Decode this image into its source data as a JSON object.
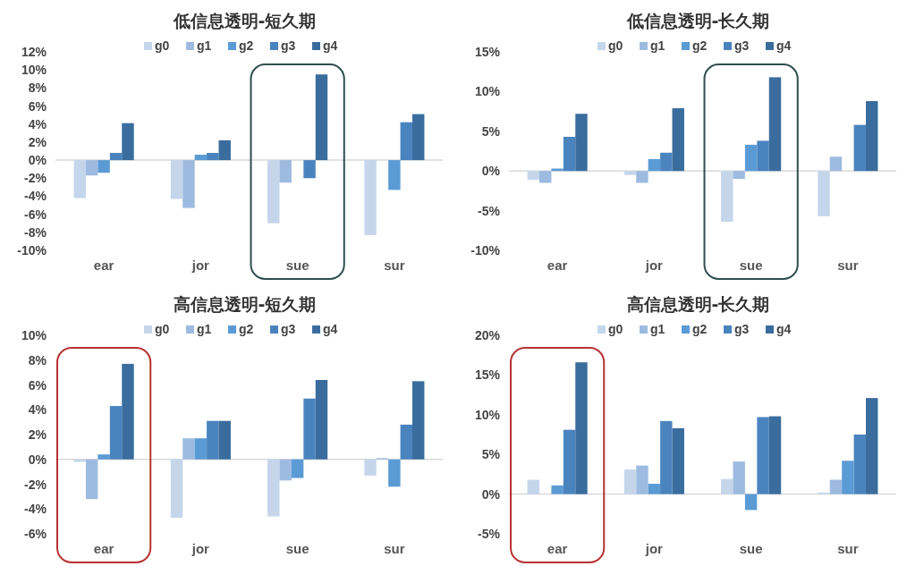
{
  "chart_data": [
    {
      "type": "bar",
      "title": "低信息透明-短久期",
      "categories": [
        "ear",
        "jor",
        "sue",
        "sur"
      ],
      "legend": "top",
      "series": [
        {
          "name": "g0",
          "color": "#c5d6eb",
          "values": [
            -4.2,
            -4.3,
            -7.0,
            -8.3
          ]
        },
        {
          "name": "g1",
          "color": "#9dbbe0",
          "values": [
            -1.7,
            -5.3,
            -2.5,
            0
          ]
        },
        {
          "name": "g2",
          "color": "#5b9bd5",
          "values": [
            -1.4,
            0.6,
            0,
            -3.3
          ]
        },
        {
          "name": "g3",
          "color": "#4a84bf",
          "values": [
            0.8,
            0.8,
            -2.0,
            4.2
          ]
        },
        {
          "name": "g4",
          "color": "#3a6d9e",
          "values": [
            4.1,
            2.2,
            9.5,
            5.1
          ]
        }
      ],
      "ylim": [
        -10,
        12
      ],
      "yticks": [
        {
          "value": -10,
          "label": "-10%"
        },
        {
          "value": -8,
          "label": "-8%"
        },
        {
          "value": -6,
          "label": "-6%"
        },
        {
          "value": -4,
          "label": "-4%"
        },
        {
          "value": -2,
          "label": "-2%"
        },
        {
          "value": 0,
          "label": "0%"
        },
        {
          "value": 2,
          "label": "2%"
        },
        {
          "value": 4,
          "label": "4%"
        },
        {
          "value": 6,
          "label": "6%"
        },
        {
          "value": 8,
          "label": "8%"
        },
        {
          "value": 10,
          "label": "10%"
        },
        {
          "value": 12,
          "label": "12%"
        }
      ]
    },
    {
      "type": "bar",
      "title": "低信息透明-长久期",
      "categories": [
        "ear",
        "jor",
        "sue",
        "sur"
      ],
      "legend": "top",
      "series": [
        {
          "name": "g0",
          "color": "#c5d6eb",
          "values": [
            -1.1,
            -0.5,
            -6.4,
            -5.7
          ]
        },
        {
          "name": "g1",
          "color": "#9dbbe0",
          "values": [
            -1.5,
            -1.5,
            -1.0,
            1.8
          ]
        },
        {
          "name": "g2",
          "color": "#5b9bd5",
          "values": [
            0.3,
            1.5,
            3.3,
            0
          ]
        },
        {
          "name": "g3",
          "color": "#4a84bf",
          "values": [
            4.3,
            2.3,
            3.8,
            5.8
          ]
        },
        {
          "name": "g4",
          "color": "#3a6d9e",
          "values": [
            7.2,
            7.9,
            11.8,
            8.8
          ]
        }
      ],
      "ylim": [
        -10,
        15
      ],
      "yticks": [
        {
          "value": -10,
          "label": "-10%"
        },
        {
          "value": -5,
          "label": "-5%"
        },
        {
          "value": 0,
          "label": "0%"
        },
        {
          "value": 5,
          "label": "5%"
        },
        {
          "value": 10,
          "label": "10%"
        },
        {
          "value": 15,
          "label": "15%"
        }
      ]
    },
    {
      "type": "bar",
      "title": "高信息透明-短久期",
      "categories": [
        "ear",
        "jor",
        "sue",
        "sur"
      ],
      "legend": "top",
      "series": [
        {
          "name": "g0",
          "color": "#c5d6eb",
          "values": [
            -0.2,
            -4.7,
            -4.6,
            -1.3
          ]
        },
        {
          "name": "g1",
          "color": "#9dbbe0",
          "values": [
            -3.2,
            1.7,
            -1.7,
            0.1
          ]
        },
        {
          "name": "g2",
          "color": "#5b9bd5",
          "values": [
            0.4,
            1.7,
            -1.5,
            -2.2
          ]
        },
        {
          "name": "g3",
          "color": "#4a84bf",
          "values": [
            4.3,
            3.1,
            4.9,
            2.8
          ]
        },
        {
          "name": "g4",
          "color": "#3a6d9e",
          "values": [
            7.7,
            3.1,
            6.4,
            6.3
          ]
        }
      ],
      "ylim": [
        -6,
        10
      ],
      "yticks": [
        {
          "value": -6,
          "label": "-6%"
        },
        {
          "value": -4,
          "label": "-4%"
        },
        {
          "value": -2,
          "label": "-2%"
        },
        {
          "value": 0,
          "label": "0%"
        },
        {
          "value": 2,
          "label": "2%"
        },
        {
          "value": 4,
          "label": "4%"
        },
        {
          "value": 6,
          "label": "6%"
        },
        {
          "value": 8,
          "label": "8%"
        },
        {
          "value": 10,
          "label": "10%"
        }
      ]
    },
    {
      "type": "bar",
      "title": "高信息透明-长久期",
      "categories": [
        "ear",
        "jor",
        "sue",
        "sur"
      ],
      "legend": "top",
      "series": [
        {
          "name": "g0",
          "color": "#c5d6eb",
          "values": [
            1.8,
            3.1,
            1.9,
            0.2
          ]
        },
        {
          "name": "g1",
          "color": "#9dbbe0",
          "values": [
            0,
            3.6,
            4.1,
            1.8
          ]
        },
        {
          "name": "g2",
          "color": "#5b9bd5",
          "values": [
            1.1,
            1.3,
            -2.0,
            4.2
          ]
        },
        {
          "name": "g3",
          "color": "#4a84bf",
          "values": [
            8.1,
            9.2,
            9.7,
            7.5
          ]
        },
        {
          "name": "g4",
          "color": "#3a6d9e",
          "values": [
            16.6,
            8.3,
            9.8,
            12.1
          ]
        }
      ],
      "ylim": [
        -5,
        20
      ],
      "yticks": [
        {
          "value": -5,
          "label": "-5%"
        },
        {
          "value": 0,
          "label": "0%"
        },
        {
          "value": 5,
          "label": "5%"
        },
        {
          "value": 10,
          "label": "10%"
        },
        {
          "value": 15,
          "label": "15%"
        },
        {
          "value": 20,
          "label": "20%"
        }
      ]
    }
  ]
}
